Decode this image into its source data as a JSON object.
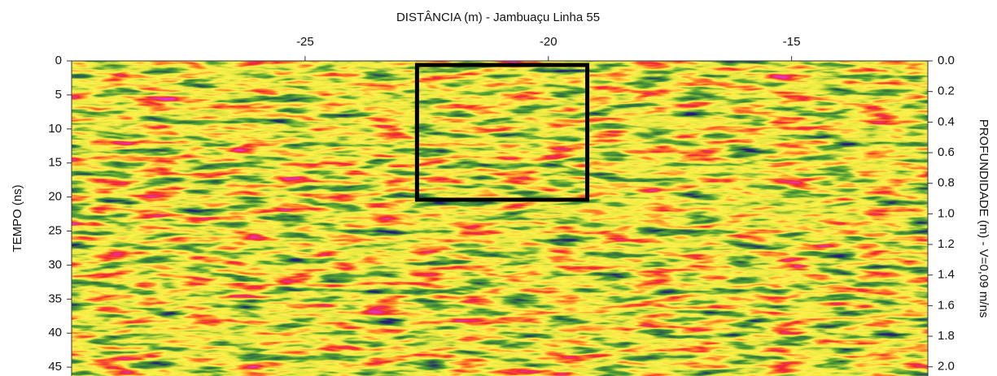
{
  "chart_data": {
    "type": "radargram",
    "title": "DISTÂNCIA (m) - Jambuaçu Linha 55",
    "ylabel": "TEMPO (ns)",
    "y2label": "PROFUNDIDADE (m) - V=0,09 m/ns",
    "xlim": [
      -29.8,
      -12.2
    ],
    "xticks": [
      -25,
      -20,
      -15
    ],
    "ylim": [
      0,
      46.3
    ],
    "yticks": [
      0,
      5,
      10,
      15,
      20,
      25,
      30,
      35,
      40,
      45
    ],
    "y2lim": [
      0,
      2.06
    ],
    "y2ticks": [
      {
        "value": 0,
        "label": "0.0"
      },
      0.2,
      0.4,
      0.6,
      0.8,
      {
        "value": 1,
        "label": "1.0"
      },
      1.2,
      1.4,
      1.6,
      1.8,
      {
        "value": 2,
        "label": "2.0"
      }
    ],
    "highlight_box": {
      "xlim": [
        -22.7,
        -19.2
      ],
      "ylim": [
        0.6,
        20.4
      ],
      "color": "#000000"
    }
  }
}
